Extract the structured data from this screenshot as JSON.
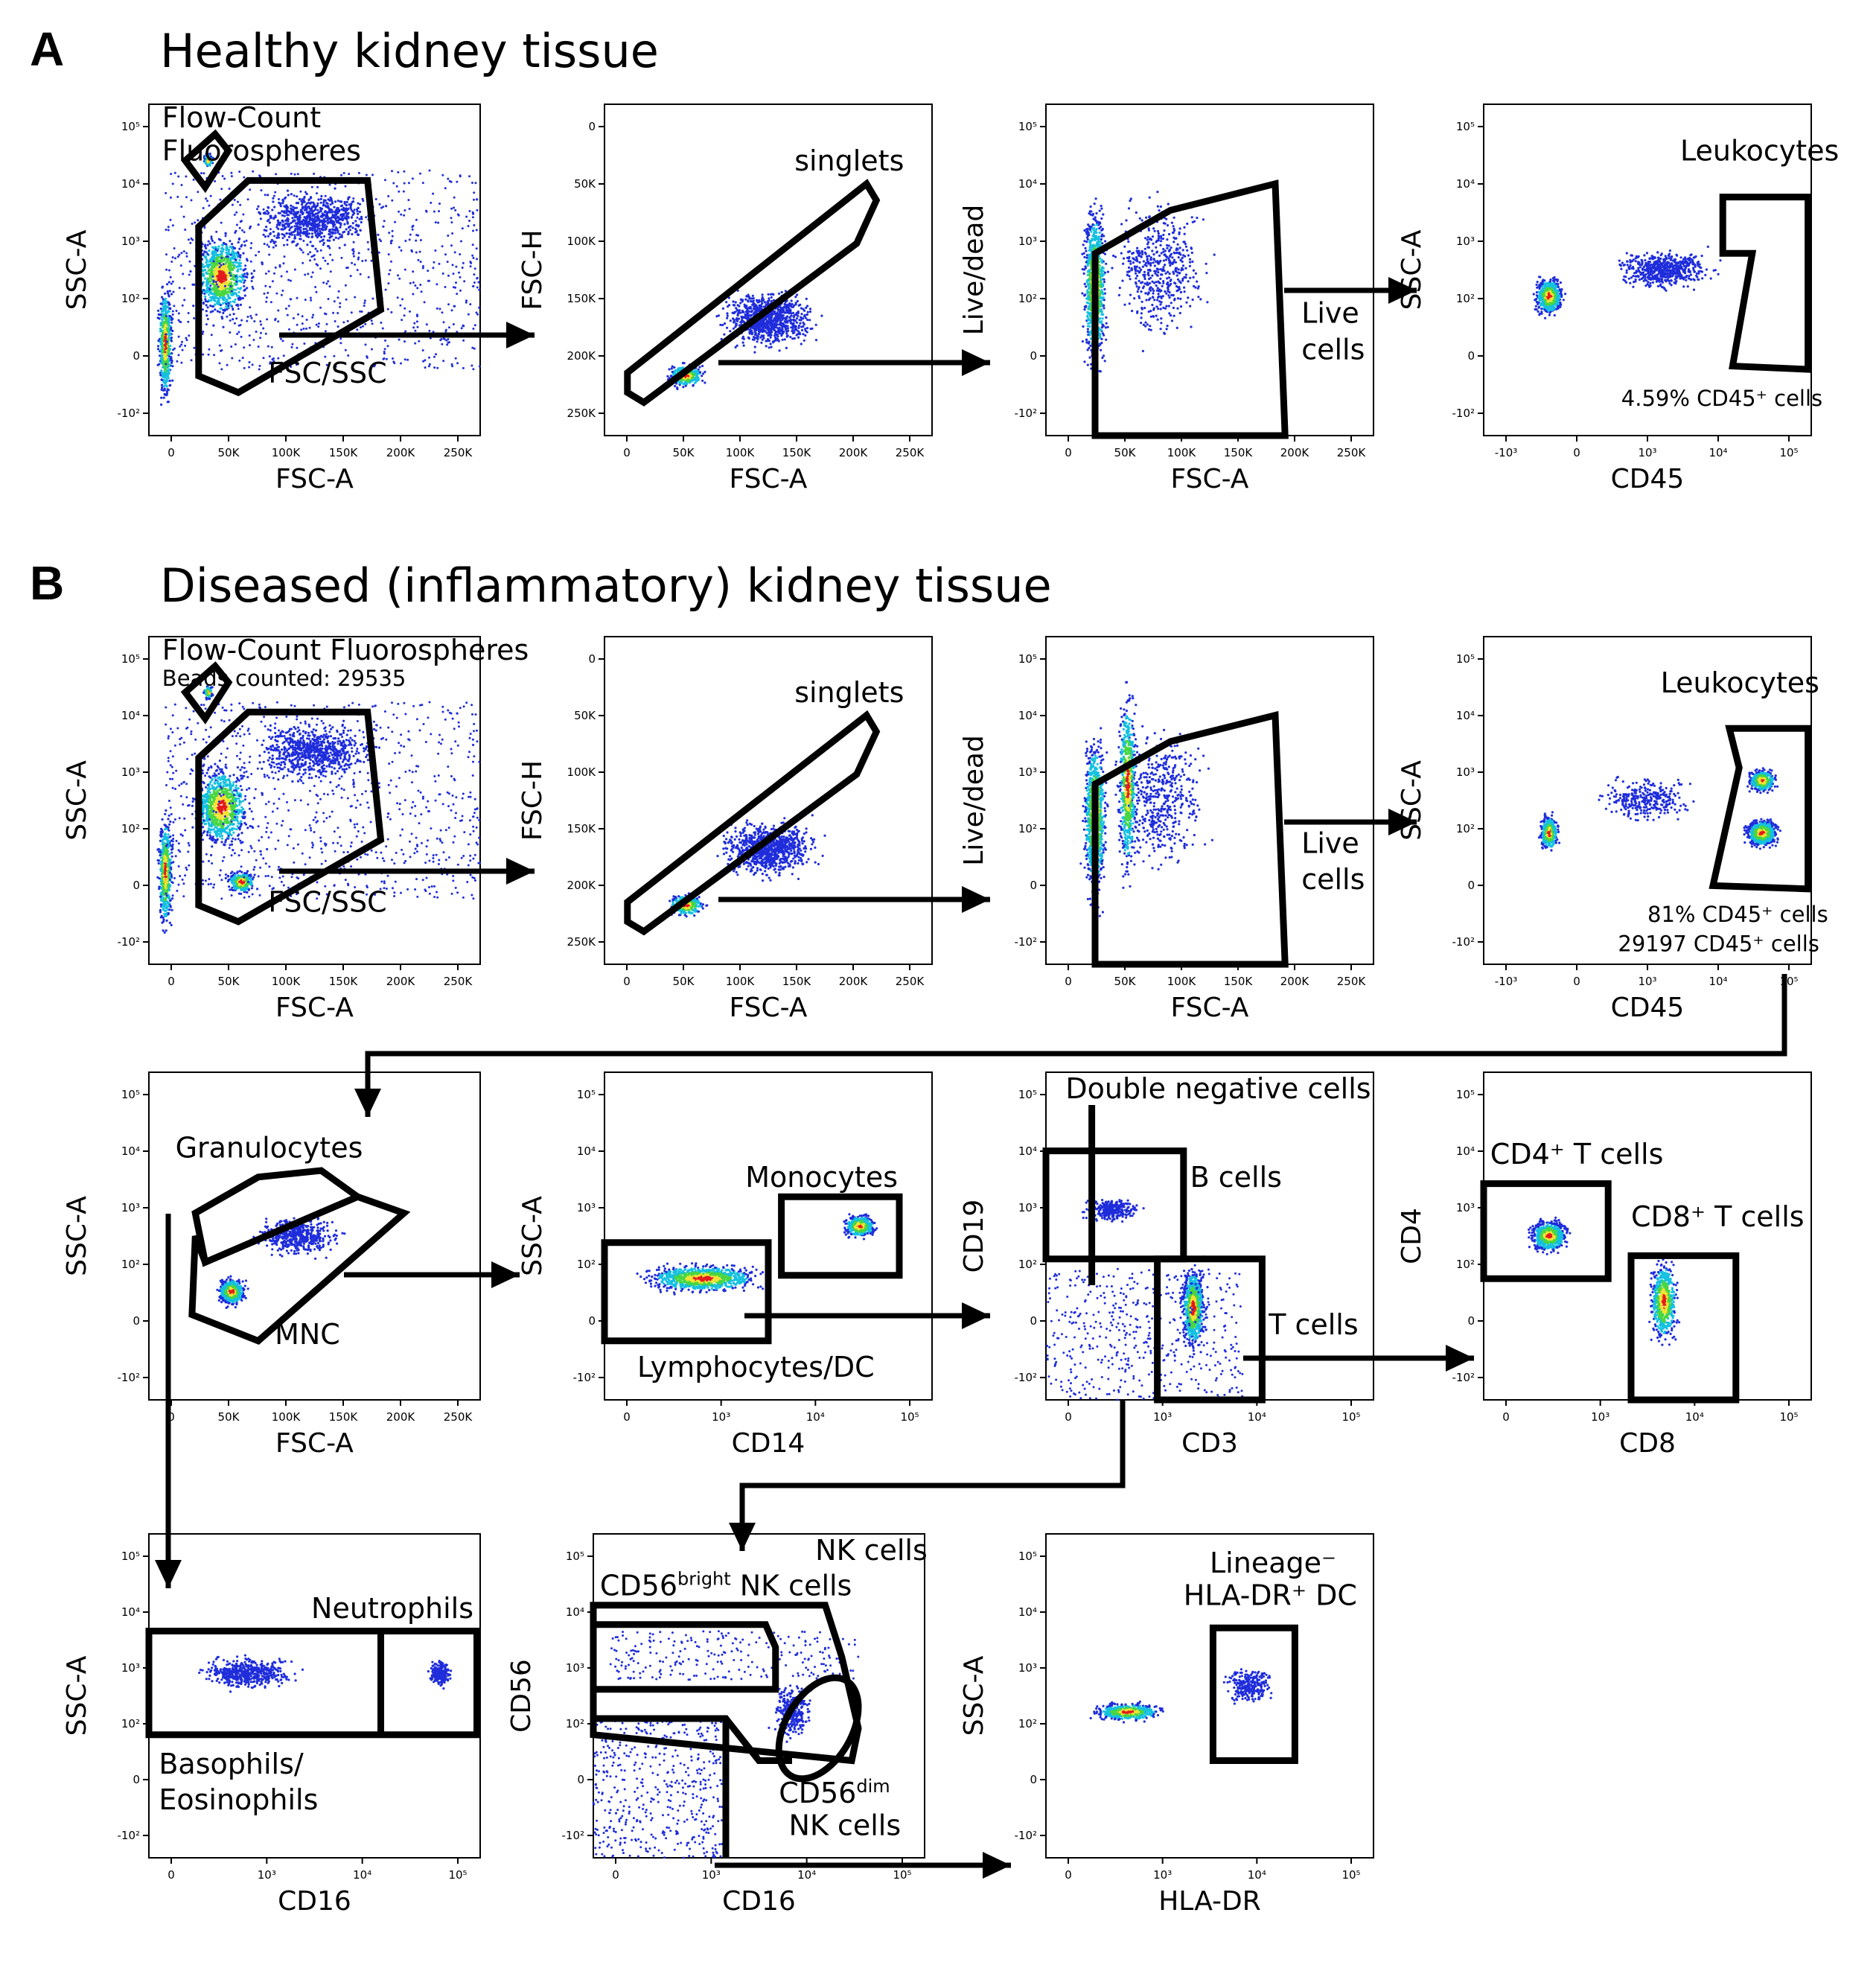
{
  "panels": {
    "a": {
      "letter": "A",
      "title": "Healthy kidney tissue"
    },
    "b": {
      "letter": "B",
      "title": "Diseased (inflammatory) kidney tissue"
    }
  },
  "axes": {
    "ssc": "SSC-A",
    "fsc": "FSC-A",
    "fsch": "FSC-H",
    "livedead": "Live/dead",
    "cd45": "CD45",
    "cd14": "CD14",
    "cd19": "CD19",
    "cd3": "CD3",
    "cd4": "CD4",
    "cd8": "CD8",
    "cd16": "CD16",
    "cd56": "CD56",
    "hladr": "HLA-DR"
  },
  "ticks": {
    "fsc_x": [
      "0",
      "50K",
      "100K",
      "150K",
      "200K",
      "250K"
    ],
    "fsc_y": [
      "0",
      "50K",
      "100K",
      "150K",
      "200K",
      "250K"
    ],
    "log_y": [
      "10⁵",
      "10⁴",
      "10³",
      "10²",
      "0",
      "-10²"
    ],
    "cd45_x": [
      "-10³",
      "0",
      "10³",
      "10⁴",
      "10⁵"
    ],
    "log_x": [
      "0",
      "10³",
      "10⁴",
      "10⁵"
    ]
  },
  "gates": {
    "beads_a_1": "Flow-Count",
    "beads_a_2": "Fluorospheres",
    "beads_b": "Flow-Count Fluorospheres",
    "beads_counted": "Beads counted: 29535",
    "fsc_ssc": "FSC/SSC",
    "singlets": "singlets",
    "live_1": "Live",
    "live_2": "cells",
    "leukocytes": "Leukocytes",
    "cd45_pct_a": "4.59% CD45⁺ cells",
    "cd45_pct_b": "81% CD45⁺ cells",
    "cd45_count_b": "29197 CD45⁺ cells",
    "granulocytes": "Granulocytes",
    "mnc": "MNC",
    "monocytes": "Monocytes",
    "lymph_dc": "Lymphocytes/DC",
    "double_neg": "Double negative cells",
    "b_cells": "B cells",
    "t_cells": "T cells",
    "cd4_t": "CD4⁺ T cells",
    "cd8_t": "CD8⁺ T cells",
    "neutrophils": "Neutrophils",
    "baso_1": "Basophils/",
    "baso_2": "Eosinophils",
    "nk_cells": "NK cells",
    "cd56bright": "CD56",
    "bright_sup": "bright",
    "bright_nk": " NK cells",
    "cd56dim": "CD56",
    "dim_sup": "dim",
    "dim_nk": "NK cells",
    "lineage": "Lineage⁻",
    "hladr_dc": "HLA-DR⁺ DC"
  },
  "colors": {
    "low": "#1f2ddb",
    "mid": "#15c0e0",
    "green": "#49d641",
    "high": "#f3e233",
    "peak": "#e41a1c"
  }
}
